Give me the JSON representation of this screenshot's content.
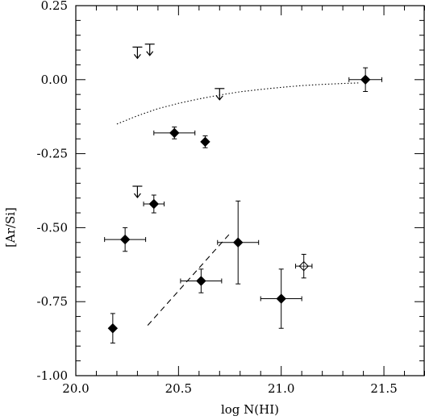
{
  "chart_data": {
    "type": "scatter",
    "title": "",
    "xlabel": "log N(HI)",
    "ylabel": "[Ar/Si]",
    "xlim": [
      20.0,
      21.7
    ],
    "ylim": [
      -1.0,
      0.25
    ],
    "x_ticks": [
      20.0,
      20.5,
      21.0,
      21.5
    ],
    "x_tick_labels": [
      "20.0",
      "20.5",
      "21.0",
      "21.5"
    ],
    "y_ticks": [
      0.25,
      0.0,
      -0.25,
      -0.5,
      -0.75,
      -1.0
    ],
    "y_tick_labels": [
      "0.25",
      "0.00",
      "-0.25",
      "-0.50",
      "-0.75",
      "-1.00"
    ],
    "grid": false,
    "legend": "none",
    "series": [
      {
        "marker": "filled-diamond",
        "points": [
          {
            "x": 20.18,
            "y": -0.84,
            "xerr": 0.0,
            "yerr": 0.05
          },
          {
            "x": 20.24,
            "y": -0.54,
            "xerr": 0.1,
            "yerr": 0.04
          },
          {
            "x": 20.38,
            "y": -0.42,
            "xerr": 0.05,
            "yerr": 0.03
          },
          {
            "x": 20.48,
            "y": -0.18,
            "xerr": 0.1,
            "yerr": 0.02
          },
          {
            "x": 20.63,
            "y": -0.21,
            "xerr": 0.0,
            "yerr": 0.02
          },
          {
            "x": 20.61,
            "y": -0.68,
            "xerr": 0.1,
            "yerr": 0.04
          },
          {
            "x": 20.79,
            "y": -0.55,
            "xerr": 0.1,
            "yerr": 0.14
          },
          {
            "x": 21.0,
            "y": -0.74,
            "xerr": 0.1,
            "yerr": 0.1
          },
          {
            "x": 21.41,
            "y": 0.0,
            "xerr": 0.08,
            "yerr": 0.04
          }
        ]
      },
      {
        "marker": "open-diamond",
        "points": [
          {
            "x": 21.11,
            "y": -0.63,
            "xerr": 0.04,
            "yerr": 0.04
          }
        ]
      },
      {
        "marker": "upper-limit-arrow",
        "points": [
          {
            "x": 20.3,
            "y": 0.11
          },
          {
            "x": 20.36,
            "y": 0.12
          },
          {
            "x": 20.3,
            "y": -0.36
          },
          {
            "x": 20.7,
            "y": -0.03
          }
        ]
      }
    ],
    "curves": [
      {
        "style": "dotted",
        "x": [
          20.2,
          20.3,
          20.4,
          20.5,
          20.6,
          20.7,
          20.8,
          20.9,
          21.0,
          21.1,
          21.2,
          21.3,
          21.38
        ],
        "y": [
          -0.15,
          -0.122,
          -0.098,
          -0.08,
          -0.065,
          -0.052,
          -0.041,
          -0.033,
          -0.026,
          -0.02,
          -0.016,
          -0.013,
          -0.011
        ]
      },
      {
        "style": "dashed",
        "x": [
          20.35,
          20.75
        ],
        "y": [
          -0.83,
          -0.52
        ]
      }
    ]
  }
}
